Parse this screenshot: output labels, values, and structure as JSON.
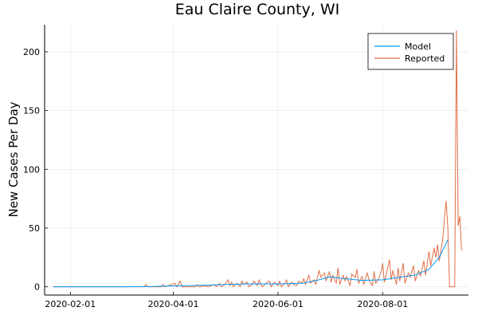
{
  "chart_data": {
    "type": "line",
    "title": "Eau Claire County, WI",
    "xlabel": "",
    "ylabel": "New Cases Per Day",
    "x_axis": {
      "kind": "date",
      "range": [
        "2020-01-17",
        "2020-09-20"
      ],
      "ticks": [
        "2020-02-01",
        "2020-04-01",
        "2020-06-01",
        "2020-08-01"
      ]
    },
    "y_axis": {
      "range": [
        -7,
        223
      ],
      "ticks": [
        0,
        50,
        100,
        150,
        200
      ]
    },
    "grid": true,
    "legend_position": "top-right",
    "series": [
      {
        "name": "Model",
        "color": "#009AFA",
        "points": [
          [
            "2020-01-22",
            0
          ],
          [
            "2020-03-01",
            0
          ],
          [
            "2020-03-20",
            0.3
          ],
          [
            "2020-04-01",
            0.8
          ],
          [
            "2020-04-15",
            1.2
          ],
          [
            "2020-05-01",
            2
          ],
          [
            "2020-05-15",
            2.5
          ],
          [
            "2020-06-01",
            2.5
          ],
          [
            "2020-06-15",
            3
          ],
          [
            "2020-06-25",
            6
          ],
          [
            "2020-07-01",
            8.5
          ],
          [
            "2020-07-10",
            7
          ],
          [
            "2020-07-20",
            5.5
          ],
          [
            "2020-08-01",
            6
          ],
          [
            "2020-08-10",
            8
          ],
          [
            "2020-08-20",
            10
          ],
          [
            "2020-08-28",
            15
          ],
          [
            "2020-09-03",
            25
          ],
          [
            "2020-09-08",
            40
          ]
        ]
      },
      {
        "name": "Reported",
        "color": "#E26F46",
        "points": [
          [
            "2020-01-22",
            0
          ],
          [
            "2020-03-15",
            0
          ],
          [
            "2020-03-16",
            2
          ],
          [
            "2020-03-17",
            0
          ],
          [
            "2020-03-25",
            0
          ],
          [
            "2020-03-26",
            2
          ],
          [
            "2020-03-27",
            0
          ],
          [
            "2020-04-02",
            3
          ],
          [
            "2020-04-03",
            0
          ],
          [
            "2020-04-05",
            5
          ],
          [
            "2020-04-06",
            0
          ],
          [
            "2020-04-14",
            0
          ],
          [
            "2020-04-15",
            2
          ],
          [
            "2020-04-16",
            0
          ],
          [
            "2020-04-20",
            1
          ],
          [
            "2020-04-21",
            0
          ],
          [
            "2020-04-25",
            2
          ],
          [
            "2020-04-26",
            0
          ],
          [
            "2020-04-28",
            3
          ],
          [
            "2020-04-29",
            0
          ],
          [
            "2020-05-01",
            2
          ],
          [
            "2020-05-03",
            6
          ],
          [
            "2020-05-04",
            1
          ],
          [
            "2020-05-05",
            4
          ],
          [
            "2020-05-06",
            0
          ],
          [
            "2020-05-08",
            3
          ],
          [
            "2020-05-10",
            0
          ],
          [
            "2020-05-11",
            5
          ],
          [
            "2020-05-12",
            2
          ],
          [
            "2020-05-14",
            4
          ],
          [
            "2020-05-15",
            0
          ],
          [
            "2020-05-17",
            2
          ],
          [
            "2020-05-18",
            5
          ],
          [
            "2020-05-20",
            1
          ],
          [
            "2020-05-21",
            6
          ],
          [
            "2020-05-22",
            2
          ],
          [
            "2020-05-23",
            0
          ],
          [
            "2020-05-25",
            3
          ],
          [
            "2020-05-27",
            5
          ],
          [
            "2020-05-28",
            0
          ],
          [
            "2020-05-30",
            4
          ],
          [
            "2020-06-01",
            1
          ],
          [
            "2020-06-02",
            5
          ],
          [
            "2020-06-03",
            0
          ],
          [
            "2020-06-05",
            3
          ],
          [
            "2020-06-06",
            6
          ],
          [
            "2020-06-07",
            0
          ],
          [
            "2020-06-09",
            4
          ],
          [
            "2020-06-10",
            2
          ],
          [
            "2020-06-12",
            1
          ],
          [
            "2020-06-13",
            5
          ],
          [
            "2020-06-15",
            3
          ],
          [
            "2020-06-16",
            7
          ],
          [
            "2020-06-17",
            2
          ],
          [
            "2020-06-19",
            10
          ],
          [
            "2020-06-20",
            3
          ],
          [
            "2020-06-22",
            6
          ],
          [
            "2020-06-23",
            2
          ],
          [
            "2020-06-25",
            14
          ],
          [
            "2020-06-26",
            8
          ],
          [
            "2020-06-28",
            12
          ],
          [
            "2020-06-29",
            5
          ],
          [
            "2020-07-01",
            13
          ],
          [
            "2020-07-02",
            4
          ],
          [
            "2020-07-03",
            10
          ],
          [
            "2020-07-05",
            3
          ],
          [
            "2020-07-06",
            16
          ],
          [
            "2020-07-07",
            2
          ],
          [
            "2020-07-09",
            10
          ],
          [
            "2020-07-10",
            5
          ],
          [
            "2020-07-11",
            9
          ],
          [
            "2020-07-13",
            1
          ],
          [
            "2020-07-14",
            11
          ],
          [
            "2020-07-16",
            8
          ],
          [
            "2020-07-17",
            15
          ],
          [
            "2020-07-18",
            3
          ],
          [
            "2020-07-20",
            9
          ],
          [
            "2020-07-21",
            2
          ],
          [
            "2020-07-23",
            12
          ],
          [
            "2020-07-24",
            6
          ],
          [
            "2020-07-26",
            1
          ],
          [
            "2020-07-27",
            13
          ],
          [
            "2020-07-28",
            3
          ],
          [
            "2020-07-30",
            8
          ],
          [
            "2020-07-31",
            12
          ],
          [
            "2020-08-01",
            20
          ],
          [
            "2020-08-02",
            4
          ],
          [
            "2020-08-03",
            10
          ],
          [
            "2020-08-05",
            23
          ],
          [
            "2020-08-06",
            6
          ],
          [
            "2020-08-07",
            14
          ],
          [
            "2020-08-09",
            2
          ],
          [
            "2020-08-10",
            16
          ],
          [
            "2020-08-11",
            5
          ],
          [
            "2020-08-13",
            20
          ],
          [
            "2020-08-14",
            3
          ],
          [
            "2020-08-16",
            12
          ],
          [
            "2020-08-17",
            8
          ],
          [
            "2020-08-19",
            18
          ],
          [
            "2020-08-20",
            5
          ],
          [
            "2020-08-22",
            14
          ],
          [
            "2020-08-23",
            9
          ],
          [
            "2020-08-25",
            22
          ],
          [
            "2020-08-26",
            10
          ],
          [
            "2020-08-28",
            30
          ],
          [
            "2020-08-29",
            18
          ],
          [
            "2020-08-31",
            33
          ],
          [
            "2020-09-01",
            25
          ],
          [
            "2020-09-02",
            36
          ],
          [
            "2020-09-03",
            22
          ],
          [
            "2020-09-05",
            40
          ],
          [
            "2020-09-06",
            58
          ],
          [
            "2020-09-07",
            73
          ],
          [
            "2020-09-08",
            50
          ],
          [
            "2020-09-09",
            0
          ],
          [
            "2020-09-11",
            0
          ],
          [
            "2020-09-12",
            0
          ],
          [
            "2020-09-13",
            218
          ],
          [
            "2020-09-14",
            52
          ],
          [
            "2020-09-15",
            60
          ],
          [
            "2020-09-16",
            31
          ]
        ]
      }
    ]
  }
}
